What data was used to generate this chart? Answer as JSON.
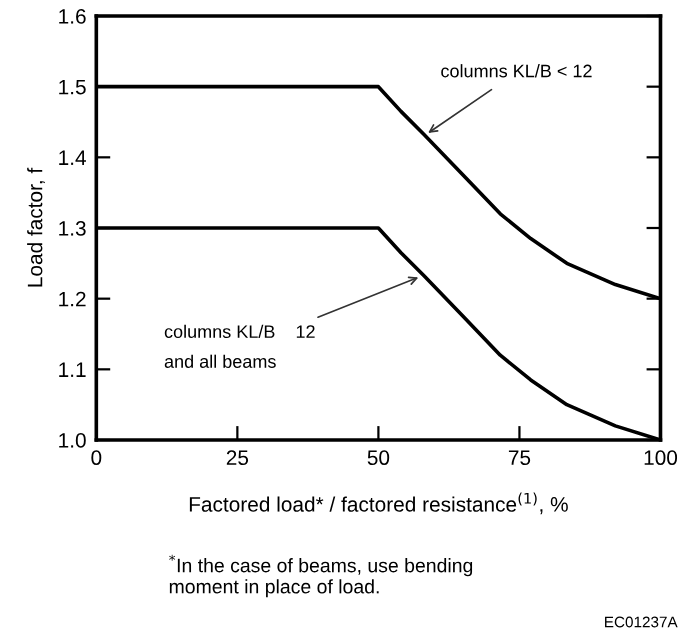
{
  "chart_data": {
    "type": "line",
    "xlabel": "Factored load* / factored resistance$^{(1)}$, %",
    "ylabel": "Load factor, f",
    "x": [
      0,
      50,
      54,
      58,
      65,
      71.6,
      77,
      83.4,
      92,
      100
    ],
    "series": [
      {
        "color": "#000000",
        "values": [
          1.5,
          1.5,
          1.465,
          1.433,
          1.375,
          1.32,
          1.285,
          1.25,
          1.22,
          1.2
        ]
      },
      {
        "color": "#000000",
        "values": [
          1.3,
          1.3,
          1.265,
          1.233,
          1.175,
          1.12,
          1.085,
          1.05,
          1.02,
          1.0
        ]
      }
    ],
    "xlim": [
      0,
      100
    ],
    "ylim": [
      1.0,
      1.6
    ],
    "xticks": [
      0,
      25,
      50,
      75,
      100
    ],
    "yticks": [
      {
        "value": 1.0,
        "label": "1.0"
      },
      {
        "value": 1.1,
        "label": "1.1"
      },
      {
        "value": 1.2,
        "label": "1.2"
      },
      {
        "value": 1.3,
        "label": "1.3"
      },
      {
        "value": 1.4,
        "label": "1.4"
      },
      {
        "value": 1.5,
        "label": "1.5"
      },
      {
        "value": 1.6,
        "label": "1.6"
      }
    ],
    "grid": false,
    "marker": "none",
    "line_style": "solid",
    "annotations": [
      {
        "text": "columns KL/B < 12",
        "x": 58,
        "y": 1.43
      },
      {
        "text": "columns KL/B    12\nand all beams",
        "x": 58,
        "y": 1.233
      },
      "$^{*}$In the case of beams, use bending\nmoment in place of load.",
      "EC01237A"
    ]
  }
}
